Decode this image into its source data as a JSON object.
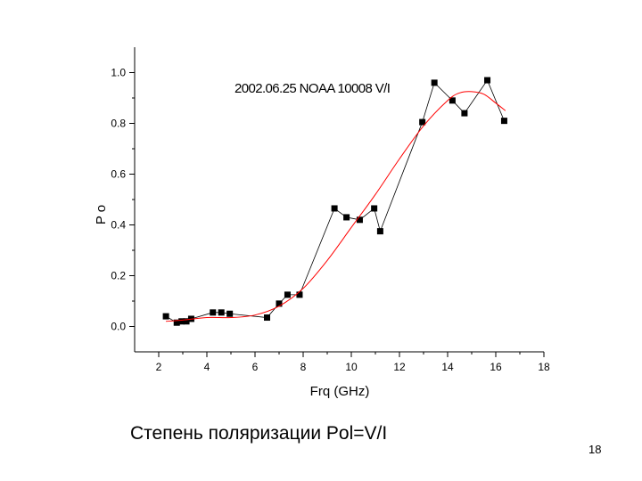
{
  "slide": {
    "caption": "Степень поляризации Pol=V/I",
    "page_number": "18"
  },
  "chart_data": {
    "type": "scatter",
    "title": "2002.06.25 NOAA 10008 V/I",
    "xlabel": "Frq (GHz)",
    "ylabel": "P o",
    "xlim": [
      1,
      18
    ],
    "ylim": [
      -0.1,
      1.1
    ],
    "x_ticks": [
      2,
      4,
      6,
      8,
      10,
      12,
      14,
      16,
      18
    ],
    "y_ticks": [
      0.0,
      0.2,
      0.4,
      0.6,
      0.8,
      1.0
    ],
    "x_tick_labels": [
      "2",
      "4",
      "6",
      "8",
      "10",
      "12",
      "14",
      "16",
      "18"
    ],
    "y_tick_labels": [
      "0.0",
      "0.2",
      "0.4",
      "0.6",
      "0.8",
      "1.0"
    ],
    "grid": false,
    "series": [
      {
        "kind": "points-connected",
        "color": "#000000",
        "x": [
          2.3,
          2.75,
          2.95,
          3.15,
          3.35,
          4.25,
          4.6,
          4.95,
          6.5,
          7.0,
          7.35,
          7.85,
          9.3,
          9.8,
          10.35,
          10.95,
          11.2,
          12.95,
          13.45,
          14.2,
          14.7,
          15.65,
          16.35
        ],
        "y": [
          0.04,
          0.015,
          0.02,
          0.02,
          0.03,
          0.055,
          0.055,
          0.05,
          0.035,
          0.09,
          0.125,
          0.125,
          0.465,
          0.43,
          0.42,
          0.465,
          0.375,
          0.805,
          0.96,
          0.89,
          0.84,
          0.97,
          0.81
        ]
      },
      {
        "kind": "fit-curve",
        "color": "#ff0000",
        "x": [
          2.3,
          3,
          4,
          5,
          6,
          7,
          8,
          9,
          10,
          11,
          12,
          13,
          14,
          14.5,
          15,
          15.5,
          16,
          16.4
        ],
        "y": [
          0.02,
          0.025,
          0.035,
          0.035,
          0.045,
          0.08,
          0.15,
          0.26,
          0.39,
          0.52,
          0.66,
          0.79,
          0.89,
          0.92,
          0.925,
          0.915,
          0.88,
          0.85
        ]
      }
    ]
  }
}
